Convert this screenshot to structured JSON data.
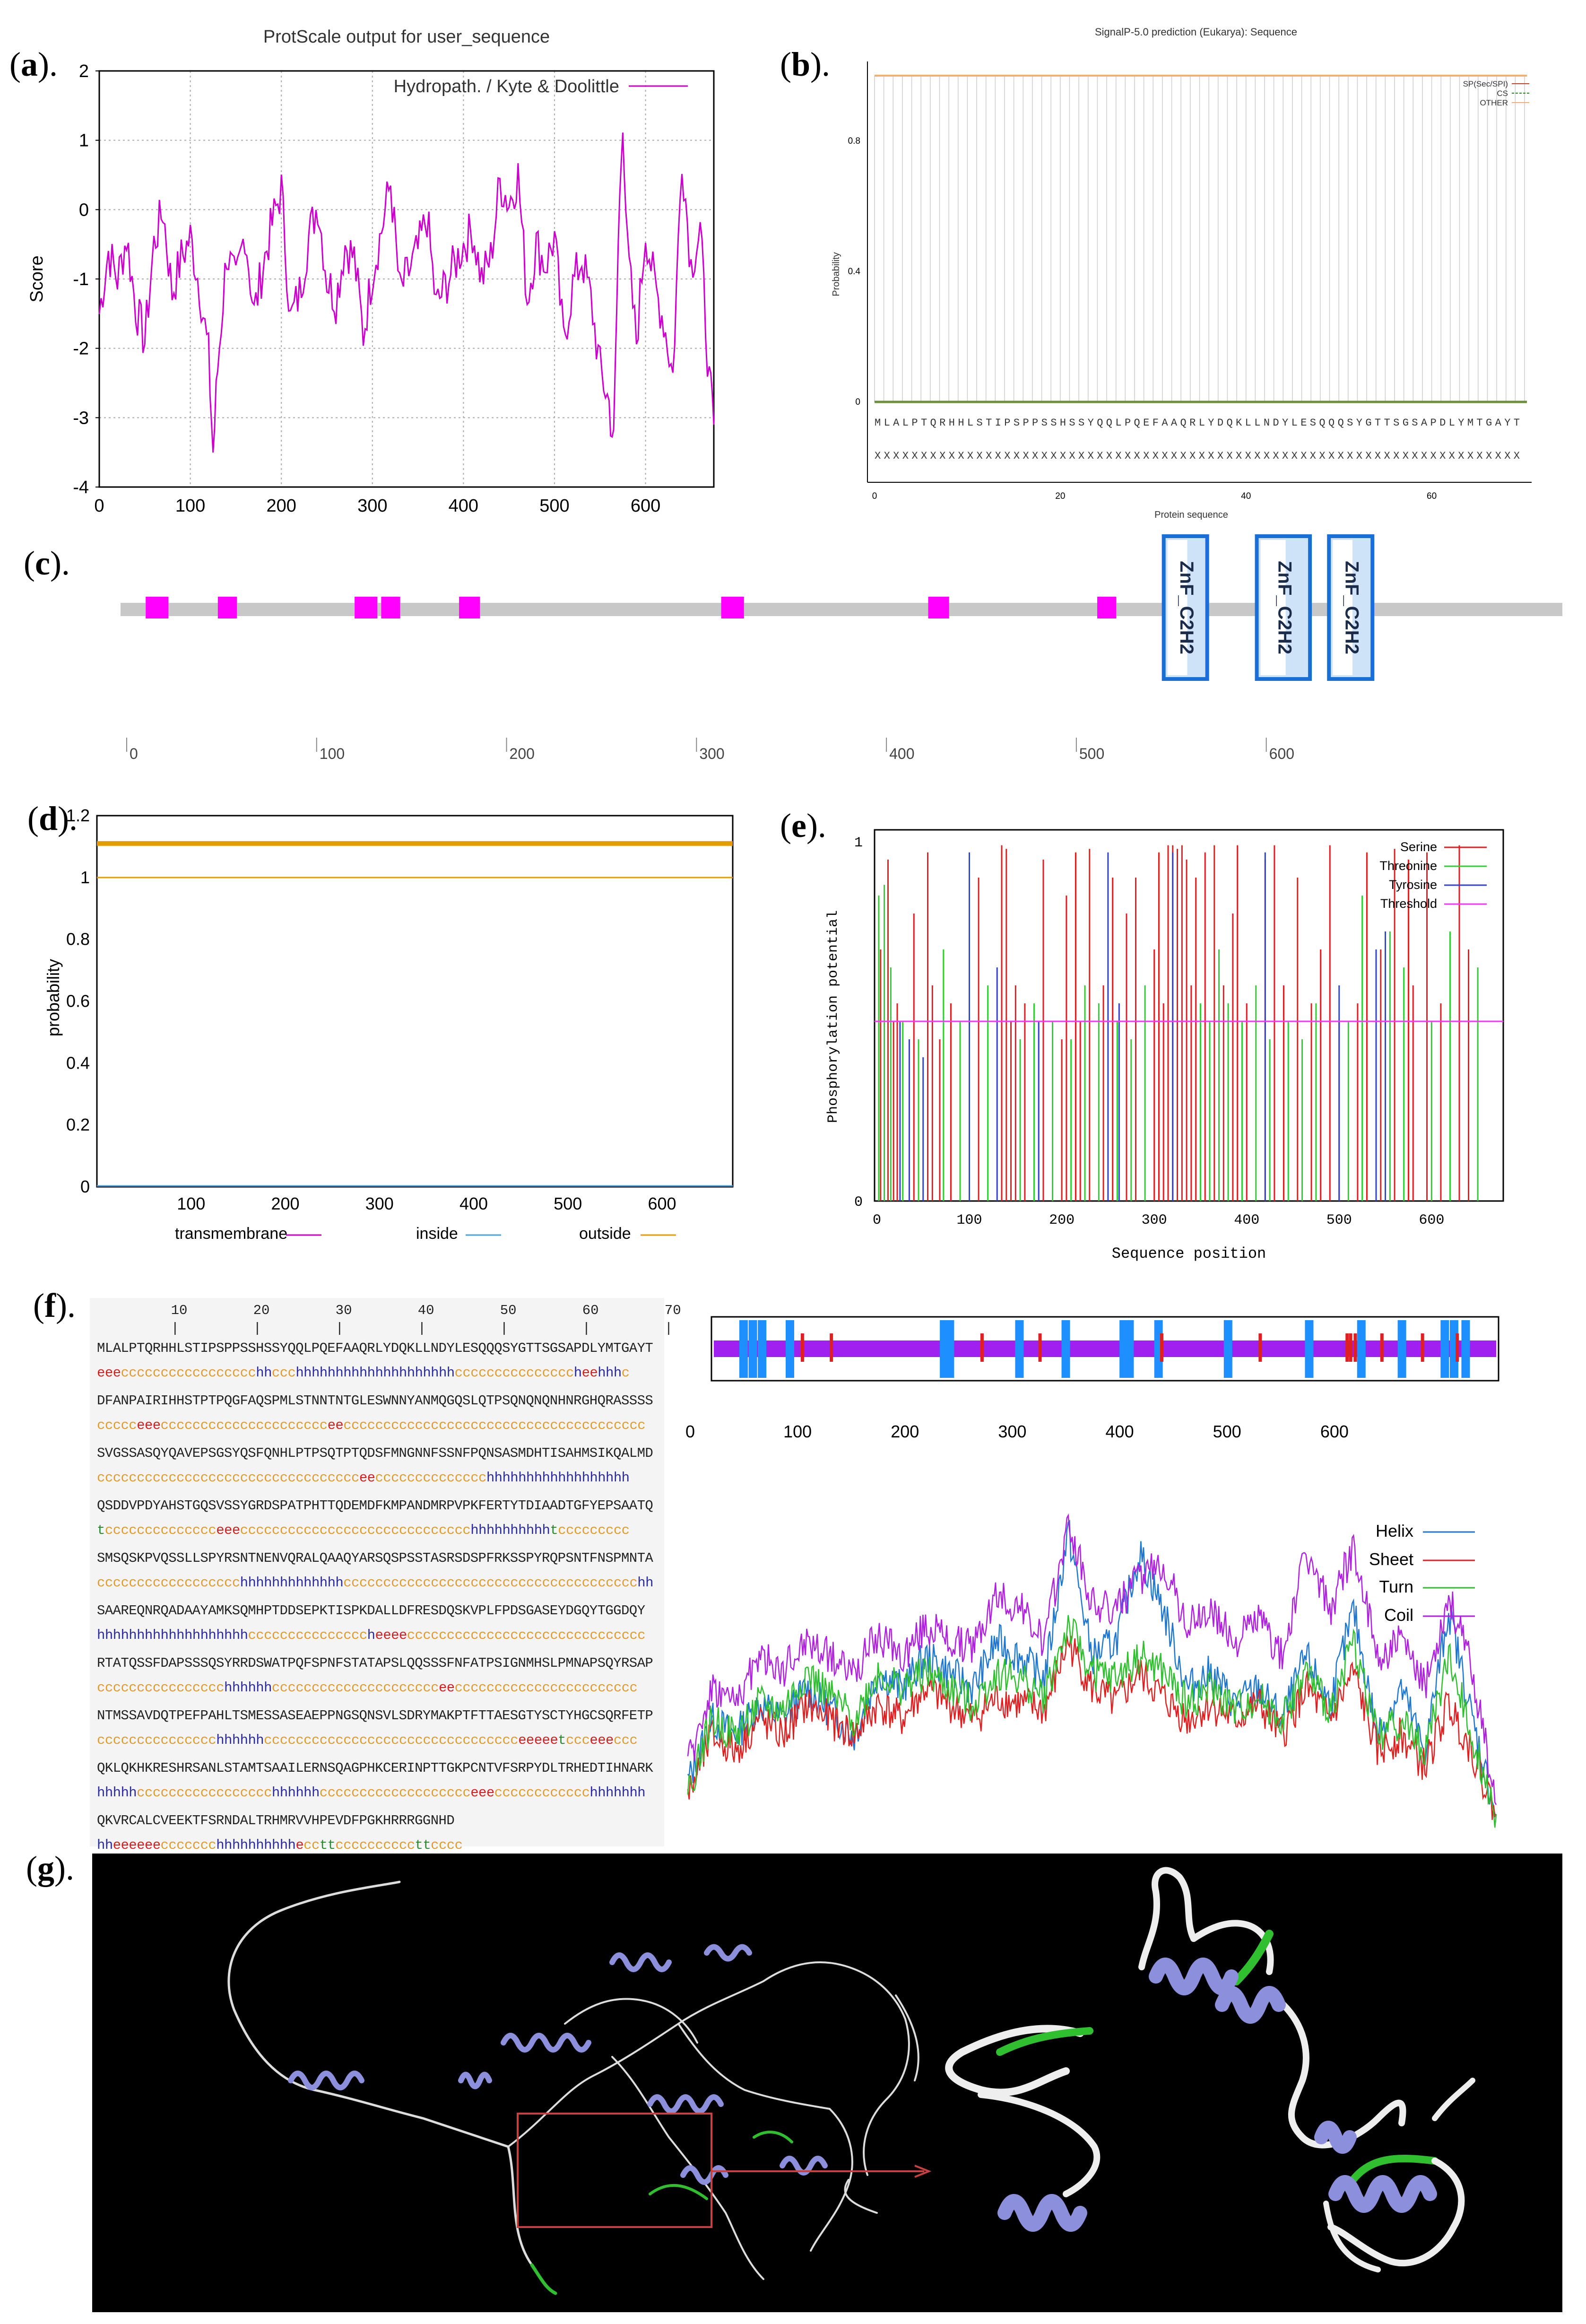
{
  "labels": {
    "a": [
      "(",
      "a",
      ")."
    ],
    "b": [
      "(",
      "b",
      ")."
    ],
    "c": [
      "(",
      "c",
      ")."
    ],
    "d": [
      "(",
      "d",
      ")."
    ],
    "e": [
      "(",
      "e",
      ")."
    ],
    "f": [
      "(",
      "f",
      ")."
    ],
    "g": [
      "(",
      "g",
      ")."
    ]
  },
  "chart_data": [
    {
      "panel": "a",
      "type": "line",
      "title": "ProtScale output for user_sequence",
      "ylabel": "Score",
      "xlabel": "",
      "legend": "Hydropath. / Kyte & Doolittle",
      "xlim": [
        0,
        675
      ],
      "ylim": [
        -4,
        2
      ],
      "xticks": [
        "0",
        "100",
        "200",
        "300",
        "400",
        "500",
        "600"
      ],
      "yticks": [
        "2",
        "1",
        "0",
        "-1",
        "-2",
        "-3",
        "-4"
      ],
      "color": "#cc00cc",
      "x": [
        0,
        10,
        20,
        30,
        40,
        50,
        60,
        70,
        80,
        90,
        100,
        110,
        120,
        125,
        130,
        140,
        150,
        160,
        170,
        180,
        190,
        200,
        210,
        220,
        230,
        240,
        250,
        260,
        270,
        280,
        290,
        300,
        310,
        320,
        330,
        340,
        350,
        360,
        370,
        380,
        390,
        400,
        410,
        420,
        430,
        440,
        450,
        460,
        470,
        480,
        490,
        500,
        510,
        520,
        530,
        540,
        550,
        560,
        565,
        570,
        575,
        580,
        590,
        600,
        610,
        620,
        630,
        640,
        650,
        660,
        670,
        675
      ],
      "values": [
        -1.5,
        -0.6,
        -1.0,
        -0.4,
        -1.4,
        -1.9,
        -0.5,
        0.0,
        -1.2,
        -0.7,
        -0.4,
        -1.1,
        -2.1,
        -3.5,
        -2.3,
        -0.6,
        -1.1,
        -0.3,
        -1.5,
        -0.8,
        -0.2,
        0.3,
        -1.6,
        -1.2,
        -0.4,
        0.1,
        -1.0,
        -1.3,
        -0.5,
        -0.7,
        -1.8,
        -0.9,
        -0.3,
        0.4,
        -1.2,
        -0.9,
        -0.6,
        -0.1,
        -1.4,
        -1.1,
        -0.8,
        -0.5,
        -0.3,
        -1.0,
        -0.7,
        0.4,
        0.1,
        0.5,
        -1.3,
        -0.5,
        -0.8,
        -0.4,
        -1.9,
        -1.1,
        -0.7,
        -1.3,
        -2.3,
        -2.8,
        -3.4,
        -0.5,
        1.4,
        -0.6,
        -1.9,
        -0.3,
        -1.1,
        -1.6,
        -2.4,
        0.8,
        -0.8,
        -0.3,
        -2.5,
        -3.1
      ]
    },
    {
      "panel": "b",
      "type": "line",
      "title": "SignalP-5.0 prediction (Eukarya): Sequence",
      "ylabel": "Probability",
      "xlabel": "Protein sequence",
      "xlim": [
        0,
        70
      ],
      "ylim": [
        0,
        1
      ],
      "xticks": [
        "0",
        "20",
        "40",
        "60"
      ],
      "yticks": [
        "0.8",
        "0.4",
        "0"
      ],
      "legend": [
        "SP(Sec/SPI)",
        "CS",
        "OTHER"
      ],
      "series": [
        {
          "name": "OTHER",
          "values": [
            1.0,
            1.0
          ]
        },
        {
          "name": "SP(Sec/SPI)",
          "values": [
            0.0,
            0.0
          ]
        },
        {
          "name": "CS",
          "values": [
            0.0,
            0.0
          ]
        }
      ],
      "sequence": "MLALPTQRHHLSTIPSPPSSHSSYQQLPQEFAAQRLYDQKLLNDYLESQQQSYGTTSGSAPDLYMTGAYT",
      "annotation": "XXXXXXXXXXXXXXXXXXXXXXXXXXXXXXXXXXXXXXXXXXXXXXXXXXXXXXXXXXXXXXXXXXXXXX"
    },
    {
      "panel": "c",
      "type": "diagram",
      "xlim": [
        0,
        675
      ],
      "xticks": [
        "0",
        "100",
        "200",
        "300",
        "400",
        "500",
        "600"
      ],
      "low_complexity_regions": [
        [
          10,
          22
        ],
        [
          48,
          58
        ],
        [
          120,
          132
        ],
        [
          134,
          144
        ],
        [
          175,
          186
        ],
        [
          313,
          325
        ],
        [
          422,
          433
        ],
        [
          511,
          521
        ]
      ],
      "domains": [
        {
          "name": "ZnF_C2H2",
          "start": 545,
          "end": 569
        },
        {
          "name": "ZnF_C2H2",
          "start": 594,
          "end": 624
        },
        {
          "name": "ZnF_C2H2",
          "start": 632,
          "end": 656
        }
      ]
    },
    {
      "panel": "d",
      "type": "line",
      "ylabel": "probability",
      "xlim": [
        0,
        675
      ],
      "ylim": [
        0,
        1.2
      ],
      "xticks": [
        "100",
        "200",
        "300",
        "400",
        "500",
        "600"
      ],
      "yticks": [
        "1.2",
        "1",
        "0.8",
        "0.6",
        "0.4",
        "0.2",
        "0"
      ],
      "series": [
        {
          "name": "transmembrane",
          "color": "#cc00cc",
          "value": 0.0
        },
        {
          "name": "inside",
          "color": "#4aa3df",
          "value": 0.0
        },
        {
          "name": "outside",
          "color": "#e69b00",
          "value": 1.0
        }
      ],
      "thick_outside_line": 1.11
    },
    {
      "panel": "e",
      "type": "bar",
      "ylabel": "Phosphorylation potential",
      "xlabel": "Sequence position",
      "xlim": [
        0,
        675
      ],
      "ylim": [
        0,
        1
      ],
      "xticks": [
        "0",
        "100",
        "200",
        "300",
        "400",
        "500",
        "600"
      ],
      "yticks": [
        "1",
        "0"
      ],
      "threshold": 0.5,
      "series": [
        {
          "name": "Serine",
          "color": "#e02020",
          "positions": [
            4,
            12,
            18,
            22,
            40,
            55,
            60,
            68,
            80,
            110,
            135,
            140,
            145,
            150,
            160,
            180,
            200,
            205,
            215,
            220,
            230,
            245,
            255,
            270,
            280,
            300,
            305,
            310,
            315,
            320,
            325,
            330,
            335,
            340,
            345,
            355,
            365,
            375,
            385,
            390,
            400,
            420,
            430,
            440,
            455,
            470,
            480,
            490,
            500,
            520,
            530,
            545,
            560,
            575,
            580,
            595,
            610,
            630,
            640
          ],
          "values": [
            0.7,
            0.95,
            0.5,
            0.55,
            0.8,
            0.97,
            0.6,
            0.45,
            0.55,
            0.9,
            0.99,
            0.98,
            0.5,
            0.6,
            0.55,
            0.95,
            0.45,
            0.85,
            0.97,
            0.5,
            0.98,
            0.6,
            0.9,
            0.8,
            0.9,
            0.7,
            0.97,
            0.55,
            0.99,
            0.99,
            0.98,
            0.99,
            0.95,
            0.6,
            0.9,
            0.97,
            0.99,
            0.6,
            0.8,
            0.99,
            0.55,
            0.95,
            0.99,
            0.6,
            0.9,
            0.55,
            0.7,
            0.99,
            0.5,
            0.55,
            0.97,
            0.7,
            0.98,
            0.95,
            0.6,
            0.97,
            0.55,
            0.99,
            0.7
          ]
        },
        {
          "name": "Threonine",
          "color": "#33cc33",
          "positions": [
            2,
            8,
            15,
            28,
            45,
            72,
            90,
            120,
            155,
            170,
            190,
            210,
            225,
            240,
            260,
            275,
            290,
            350,
            360,
            370,
            380,
            395,
            410,
            425,
            445,
            460,
            475,
            510,
            525,
            540,
            555,
            570,
            600,
            620,
            650
          ],
          "values": [
            0.85,
            0.88,
            0.65,
            0.5,
            0.45,
            0.7,
            0.5,
            0.6,
            0.45,
            0.55,
            0.5,
            0.45,
            0.6,
            0.55,
            0.5,
            0.45,
            0.6,
            0.55,
            0.5,
            0.7,
            0.55,
            0.5,
            0.6,
            0.45,
            0.5,
            0.45,
            0.55,
            0.5,
            0.85,
            0.6,
            0.75,
            0.65,
            0.5,
            0.75,
            0.65
          ]
        },
        {
          "name": "Tyrosine",
          "color": "#3344cc",
          "positions": [
            25,
            35,
            50,
            100,
            130,
            175,
            250,
            262,
            320,
            420,
            500,
            540,
            550
          ],
          "values": [
            0.5,
            0.45,
            0.4,
            0.97,
            0.65,
            0.5,
            0.97,
            0.55,
            0.97,
            0.97,
            0.6,
            0.7,
            0.75
          ]
        }
      ]
    },
    {
      "panel": "f",
      "type": "line",
      "xlim": [
        0,
        675
      ],
      "xticks": [
        "0",
        "100",
        "200",
        "300",
        "400",
        "500",
        "600"
      ],
      "ruler": [
        "10",
        "20",
        "30",
        "40",
        "50",
        "60",
        "70"
      ],
      "legend": [
        "Helix",
        "Sheet",
        "Turn",
        "Coil"
      ],
      "series": [
        {
          "name": "Helix",
          "color": "#1f77d0",
          "values": [
            0.15,
            0.35,
            0.3,
            0.4,
            0.35,
            0.45,
            0.38,
            0.3,
            0.5,
            0.45,
            0.55,
            0.5,
            0.45,
            0.6,
            0.55,
            0.48,
            0.95,
            0.55,
            0.6,
            0.88,
            0.7,
            0.45,
            0.5,
            0.4,
            0.45,
            0.35,
            0.55,
            0.4,
            0.7,
            0.3,
            0.45,
            0.25,
            0.7,
            0.35,
            0.05
          ]
        },
        {
          "name": "Sheet",
          "color": "#e02020",
          "values": [
            0.1,
            0.3,
            0.25,
            0.35,
            0.3,
            0.4,
            0.35,
            0.3,
            0.4,
            0.35,
            0.45,
            0.4,
            0.35,
            0.42,
            0.4,
            0.38,
            0.6,
            0.45,
            0.4,
            0.5,
            0.42,
            0.35,
            0.4,
            0.35,
            0.4,
            0.3,
            0.45,
            0.35,
            0.5,
            0.25,
            0.3,
            0.2,
            0.4,
            0.25,
            0.05
          ]
        },
        {
          "name": "Turn",
          "color": "#2fbf2f",
          "values": [
            0.12,
            0.35,
            0.3,
            0.4,
            0.38,
            0.5,
            0.42,
            0.35,
            0.5,
            0.45,
            0.5,
            0.45,
            0.4,
            0.5,
            0.48,
            0.42,
            0.65,
            0.5,
            0.48,
            0.55,
            0.5,
            0.4,
            0.45,
            0.38,
            0.42,
            0.35,
            0.5,
            0.38,
            0.6,
            0.3,
            0.35,
            0.25,
            0.55,
            0.3,
            0.05
          ]
        },
        {
          "name": "Coil",
          "color": "#b020e0",
          "values": [
            0.2,
            0.45,
            0.4,
            0.55,
            0.5,
            0.6,
            0.55,
            0.5,
            0.62,
            0.55,
            0.65,
            0.6,
            0.58,
            0.75,
            0.7,
            0.6,
            0.98,
            0.72,
            0.7,
            0.8,
            0.85,
            0.65,
            0.7,
            0.6,
            0.68,
            0.55,
            0.88,
            0.7,
            0.9,
            0.55,
            0.6,
            0.45,
            0.75,
            0.5,
            0.08
          ]
        }
      ],
      "ss_bar_blue_positions": [
        22,
        30,
        38,
        62,
        195,
        200,
        260,
        300,
        350,
        355,
        380,
        440,
        510,
        555,
        590,
        627,
        635,
        645
      ],
      "ss_bar_red_positions": [
        75,
        100,
        230,
        280,
        385,
        470,
        545,
        548,
        552,
        575,
        610,
        640
      ]
    }
  ],
  "sequence_lines": [
    {
      "aa": "MLALPTQRHHLSTIPSPPSSHSSYQQLPQEFAAQRLYDQKLLNDYLESQQQSYGTTSGSAPDLYMTGAYT",
      "ss": "eeeccccccccccccccccchhccchhhhhhhhhhhhhhhhhhhhcccccccccccccccheehhhc"
    },
    {
      "aa": "DFANPAIRIHHSTPTPQGFAQSPMLSTNNTNTGLESWNNYANMQGQSLQTPSQNQNQNHNRGHQRASSSS",
      "ss": "ccccceeeccccccccccccccccccccceecccccccccccccccccccccccccccccccccccccc"
    },
    {
      "aa": "SVGSSASQYQAVEPSGSYQSFQNHLPTPSQTPTQDSFMNGNNFSSNFPQNSASMDHTISAHMSIKQALMD",
      "ss": "ccccccccccccccccccccccccccccccccceecccccccccccccchhhhhhhhhhhhhhhhhh"
    },
    {
      "aa": "QSDDVPDYAHSTGQSVSSYGRDSPATPHTTQDEMDFKMPANDMRPVPKFERTYTDIAADTGFYEPSAATQ",
      "ss": "tcccccccccccccceeeccccccccccccccccccccccccccccchhhhhhhhhhtccccccccc"
    },
    {
      "aa": "SMSQSKPVQSSLLSPYRSNTNENVQRALQAAQYARSQSPSSTASRSDSPFRKSSPYRQPSNTFNSPMNTA",
      "ss": "cccccccccccccccccchhhhhhhhhhhhhccccccccccccccccccccccccccccccccccccchh"
    },
    {
      "aa": "SAAREQNRQADAAYAMKSQMHPTDDSEPKTISPKDALLDFRESDQSKVPLFPDSGASEYDGQYTGGDQY",
      "ss": "hhhhhhhhhhhhhhhhhhhcccccccccccccccheeeecccccccccccccccccccccccccccccc"
    },
    {
      "aa": "RTATQSSFDAPSSSQSYRRDSWATPQFSPNFSTATAPSLQQSSSFNFATPSIGNMHSLPMNAPSQYRSAP",
      "ss": "cccccccccccccccchhhhhhccccccccccccccccccccceeccccccccccccccccccccccc"
    },
    {
      "aa": "NTMSSAVDQTPEFPAHLTSMESSASEAEPPNGSQNSVLSDRYMAKPTFTTAESGTYSCTYHGCSQRFETP",
      "ss": "ccccccccccccccchhhhhhcccccccccccccccccccccccccccccccceeeeetccceeeccc"
    },
    {
      "aa": "QKLQKHKRESHRSANLSTAMTSAAILERNSQAGPHKCERINPTTGKPCNTVFSRPYDLTRHEDTIHNARK",
      "ss": "hhhhhccccccccccccccccchhhhhhccccccccccccccccccceeecccccccccccchhhhhhh"
    },
    {
      "aa": "QKVRCALCVEEKTFSRNDALTRHMRVVHPEVDFPGKHRRRGGNHD",
      "ss": "hheeeeeeccccccchhhhhhhhhheccttccccccccccttcccc"
    }
  ]
}
